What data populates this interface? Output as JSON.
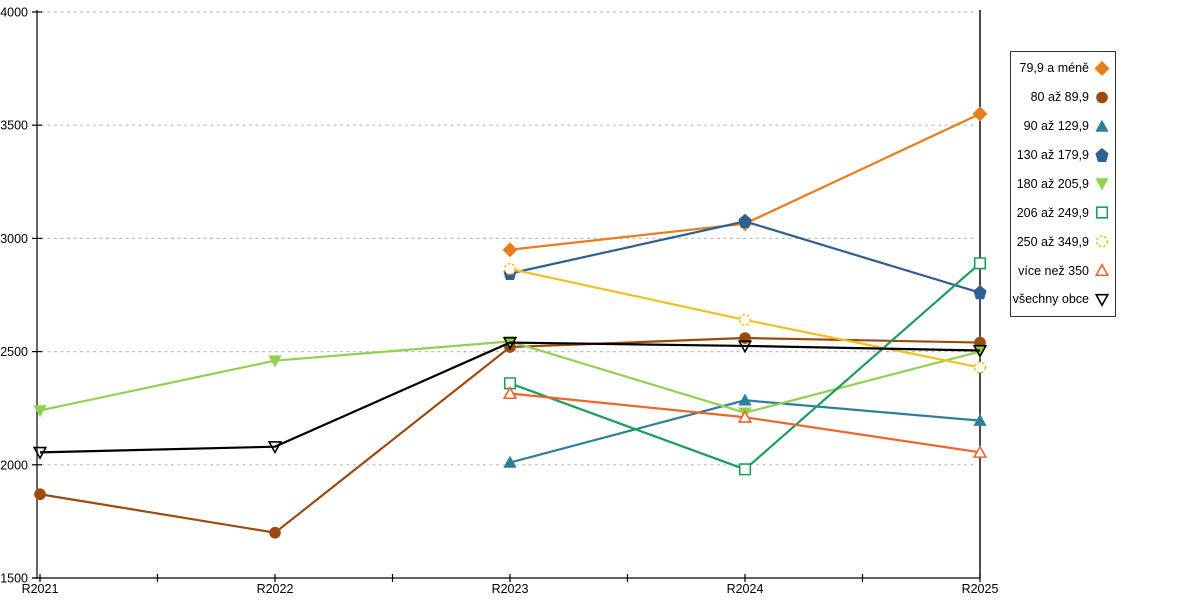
{
  "chart_data": {
    "type": "line",
    "title": "",
    "xlabel": "",
    "ylabel": "",
    "categories": [
      "R2021",
      "R2022",
      "R2023",
      "R2024",
      "R2025"
    ],
    "series": [
      {
        "name": "79,9 a méně",
        "color": "#e87d1e",
        "marker": "diamond",
        "marker_fill": "solid",
        "values": [
          null,
          null,
          2950,
          3065,
          3550
        ]
      },
      {
        "name": "80 až 89,9",
        "color": "#9c4a0e",
        "marker": "circle",
        "marker_fill": "solid",
        "values": [
          1870,
          1700,
          2520,
          2560,
          2540
        ]
      },
      {
        "name": "90 až 129,9",
        "color": "#2d7f9d",
        "marker": "triangle-up",
        "marker_fill": "solid",
        "values": [
          null,
          null,
          2010,
          2285,
          2195
        ]
      },
      {
        "name": "130 až 179,9",
        "color": "#2e6093",
        "marker": "pentagon",
        "marker_fill": "solid",
        "values": [
          null,
          null,
          2845,
          3075,
          2760
        ]
      },
      {
        "name": "180 až 205,9",
        "color": "#92d050",
        "marker": "triangle-down",
        "marker_fill": "solid",
        "values": [
          2240,
          2460,
          2545,
          2230,
          2500
        ]
      },
      {
        "name": "206 až 249,9",
        "color": "#18a05a",
        "marker": "square",
        "marker_fill": "open",
        "values": [
          null,
          null,
          2360,
          1980,
          2890
        ]
      },
      {
        "name": "250 až 349,9",
        "color": "#f0c01e",
        "marker": "circle",
        "marker_fill": "open",
        "marker_dash": true,
        "values": [
          null,
          null,
          2865,
          2640,
          2430
        ]
      },
      {
        "name": "více než 350",
        "color": "#f0642a",
        "marker": "triangle-up",
        "marker_fill": "open",
        "values": [
          null,
          null,
          2315,
          2210,
          2055
        ]
      },
      {
        "name": "všechny obce",
        "color": "#000000",
        "marker": "triangle-down",
        "marker_fill": "none",
        "values": [
          2055,
          2080,
          2540,
          2525,
          2505
        ]
      }
    ],
    "ylim": [
      1500,
      4000
    ],
    "yticks": [
      1500,
      2000,
      2500,
      3000,
      3500,
      4000
    ],
    "grid": "horizontal dashed",
    "grid_color": "#bfbfbf",
    "axis_color": "#000000",
    "legend_position": "right",
    "legend_marker_side": "after-text"
  }
}
